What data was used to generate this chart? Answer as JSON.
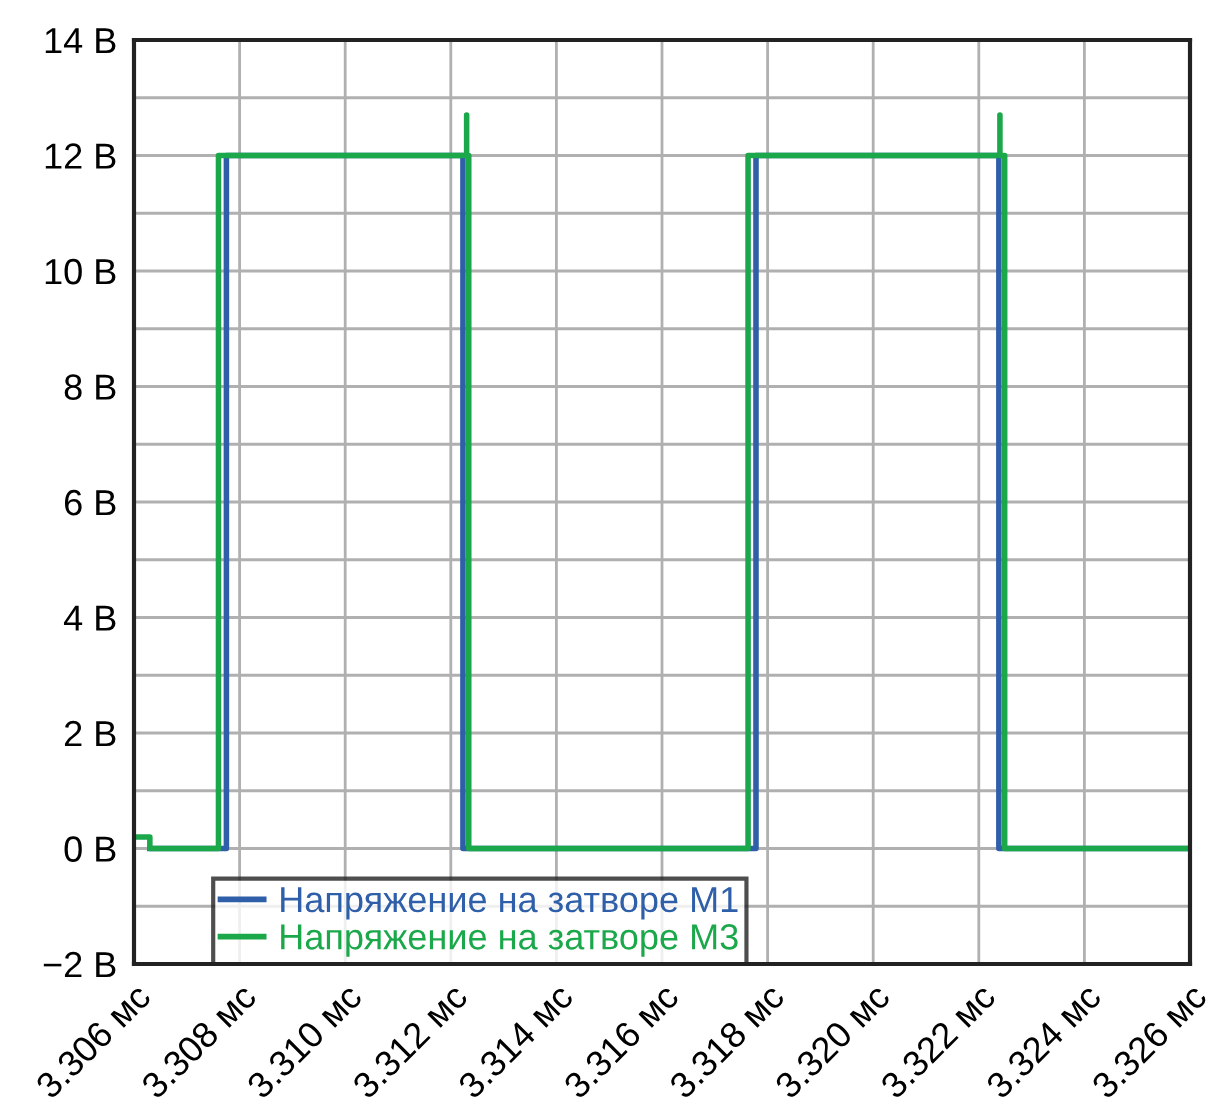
{
  "chart_data": {
    "type": "line",
    "xlim": [
      3.306,
      3.326
    ],
    "ylim": [
      -2,
      14
    ],
    "xticks": [
      {
        "value": 3.306,
        "label": "3.306 мс"
      },
      {
        "value": 3.308,
        "label": "3.308 мс"
      },
      {
        "value": 3.31,
        "label": "3.310 мс"
      },
      {
        "value": 3.312,
        "label": "3.312 мс"
      },
      {
        "value": 3.314,
        "label": "3.314 мс"
      },
      {
        "value": 3.316,
        "label": "3.316 мс"
      },
      {
        "value": 3.318,
        "label": "3.318 мс"
      },
      {
        "value": 3.32,
        "label": "3.320 мс"
      },
      {
        "value": 3.322,
        "label": "3.322 мс"
      },
      {
        "value": 3.324,
        "label": "3.324 мс"
      },
      {
        "value": 3.326,
        "label": "3.326 мс"
      }
    ],
    "yticks": [
      {
        "value": -2,
        "label": "−2 В"
      },
      {
        "value": -1,
        "label": null
      },
      {
        "value": 0,
        "label": "0 В"
      },
      {
        "value": 1,
        "label": null
      },
      {
        "value": 2,
        "label": "2 В"
      },
      {
        "value": 3,
        "label": null
      },
      {
        "value": 4,
        "label": "4 В"
      },
      {
        "value": 5,
        "label": null
      },
      {
        "value": 6,
        "label": "6 В"
      },
      {
        "value": 7,
        "label": null
      },
      {
        "value": 8,
        "label": "8 В"
      },
      {
        "value": 9,
        "label": null
      },
      {
        "value": 10,
        "label": "10 В"
      },
      {
        "value": 11,
        "label": null
      },
      {
        "value": 12,
        "label": "12 В"
      },
      {
        "value": 13,
        "label": null
      },
      {
        "value": 14,
        "label": "14 В"
      }
    ],
    "grid": true,
    "legend": "bottom left",
    "line_style": "solid",
    "marker": "none",
    "series": [
      {
        "name": "Напряжение на затворе M1",
        "color": "#2e5fa8",
        "x": [
          3.3063,
          3.30775,
          3.30775,
          3.31223,
          3.31223,
          3.31778,
          3.31778,
          3.32238,
          3.32238,
          3.326
        ],
        "values": [
          0,
          0,
          12,
          12,
          0,
          0,
          12,
          12,
          0,
          0
        ]
      },
      {
        "name": "Напряжение на затворе M3",
        "color": "#1aa84a",
        "x": [
          3.306,
          3.3063,
          3.3063,
          3.3076,
          3.3076,
          3.3123,
          3.3123,
          3.3123,
          3.31234,
          3.31234,
          3.31763,
          3.31763,
          3.3224,
          3.3224,
          3.3224,
          3.32249,
          3.32249,
          3.326
        ],
        "values": [
          0.2,
          0.2,
          0,
          0,
          12,
          12,
          12.7,
          12,
          12,
          0,
          0,
          12,
          12,
          12.7,
          12,
          12,
          0,
          0
        ]
      }
    ]
  }
}
